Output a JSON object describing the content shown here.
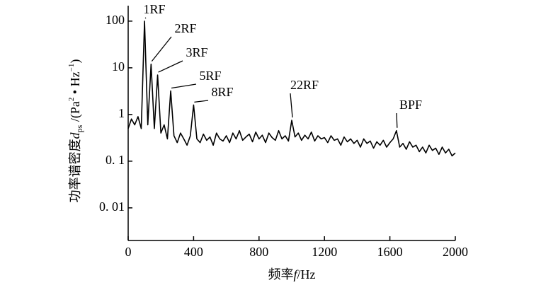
{
  "chart_data": {
    "type": "line",
    "x_label": [
      "频率",
      "f",
      "/Hz"
    ],
    "y_label": [
      "功率谱密度",
      "d",
      "ps",
      " /(Pa",
      "2",
      " • Hz",
      "−1",
      ")"
    ],
    "x": [
      0,
      20,
      40,
      60,
      80,
      100,
      120,
      140,
      160,
      180,
      200,
      220,
      240,
      260,
      280,
      300,
      320,
      340,
      360,
      380,
      400,
      420,
      440,
      460,
      480,
      500,
      520,
      540,
      560,
      580,
      600,
      620,
      640,
      660,
      680,
      700,
      720,
      740,
      760,
      780,
      800,
      820,
      840,
      860,
      880,
      900,
      920,
      940,
      960,
      980,
      1000,
      1020,
      1040,
      1060,
      1080,
      1100,
      1120,
      1140,
      1160,
      1180,
      1200,
      1220,
      1240,
      1260,
      1280,
      1300,
      1320,
      1340,
      1360,
      1380,
      1400,
      1420,
      1440,
      1460,
      1480,
      1500,
      1520,
      1540,
      1560,
      1580,
      1600,
      1620,
      1640,
      1660,
      1680,
      1700,
      1720,
      1740,
      1760,
      1780,
      1800,
      1820,
      1840,
      1860,
      1880,
      1900,
      1920,
      1940,
      1960,
      1980,
      2000
    ],
    "series": [
      {
        "color": "#000000",
        "values": [
          0.5,
          0.8,
          0.6,
          0.9,
          0.5,
          100,
          0.6,
          12,
          0.5,
          7,
          0.4,
          0.6,
          0.3,
          3.2,
          0.35,
          0.25,
          0.4,
          0.3,
          0.22,
          0.35,
          1.6,
          0.3,
          0.25,
          0.38,
          0.28,
          0.33,
          0.22,
          0.4,
          0.3,
          0.27,
          0.35,
          0.25,
          0.4,
          0.3,
          0.45,
          0.28,
          0.33,
          0.38,
          0.26,
          0.42,
          0.3,
          0.36,
          0.25,
          0.4,
          0.32,
          0.28,
          0.45,
          0.3,
          0.35,
          0.27,
          0.75,
          0.33,
          0.4,
          0.28,
          0.36,
          0.3,
          0.42,
          0.27,
          0.35,
          0.3,
          0.32,
          0.25,
          0.35,
          0.28,
          0.3,
          0.22,
          0.33,
          0.26,
          0.3,
          0.24,
          0.28,
          0.2,
          0.3,
          0.24,
          0.27,
          0.19,
          0.26,
          0.22,
          0.28,
          0.2,
          0.25,
          0.3,
          0.45,
          0.2,
          0.24,
          0.18,
          0.26,
          0.2,
          0.22,
          0.16,
          0.2,
          0.15,
          0.22,
          0.17,
          0.19,
          0.14,
          0.2,
          0.15,
          0.18,
          0.13,
          0.15
        ]
      }
    ],
    "annotations": [
      {
        "text": "1RF",
        "x": 100
      },
      {
        "text": "2RF",
        "x": 140
      },
      {
        "text": "3RF",
        "x": 180
      },
      {
        "text": "5RF",
        "x": 260
      },
      {
        "text": "8RF",
        "x": 400
      },
      {
        "text": "22RF",
        "x": 1000
      },
      {
        "text": "BPF",
        "x": 1640
      }
    ],
    "xlim": [
      0,
      2000
    ],
    "xticks": [
      0,
      400,
      800,
      1200,
      1600,
      2000
    ],
    "ylim": [
      0.002,
      200
    ],
    "log_y": true,
    "yticks": [
      {
        "value": 0.01,
        "label": "0. 01"
      },
      {
        "value": 0.1,
        "label": "0. 1"
      },
      1,
      10,
      100
    ]
  }
}
